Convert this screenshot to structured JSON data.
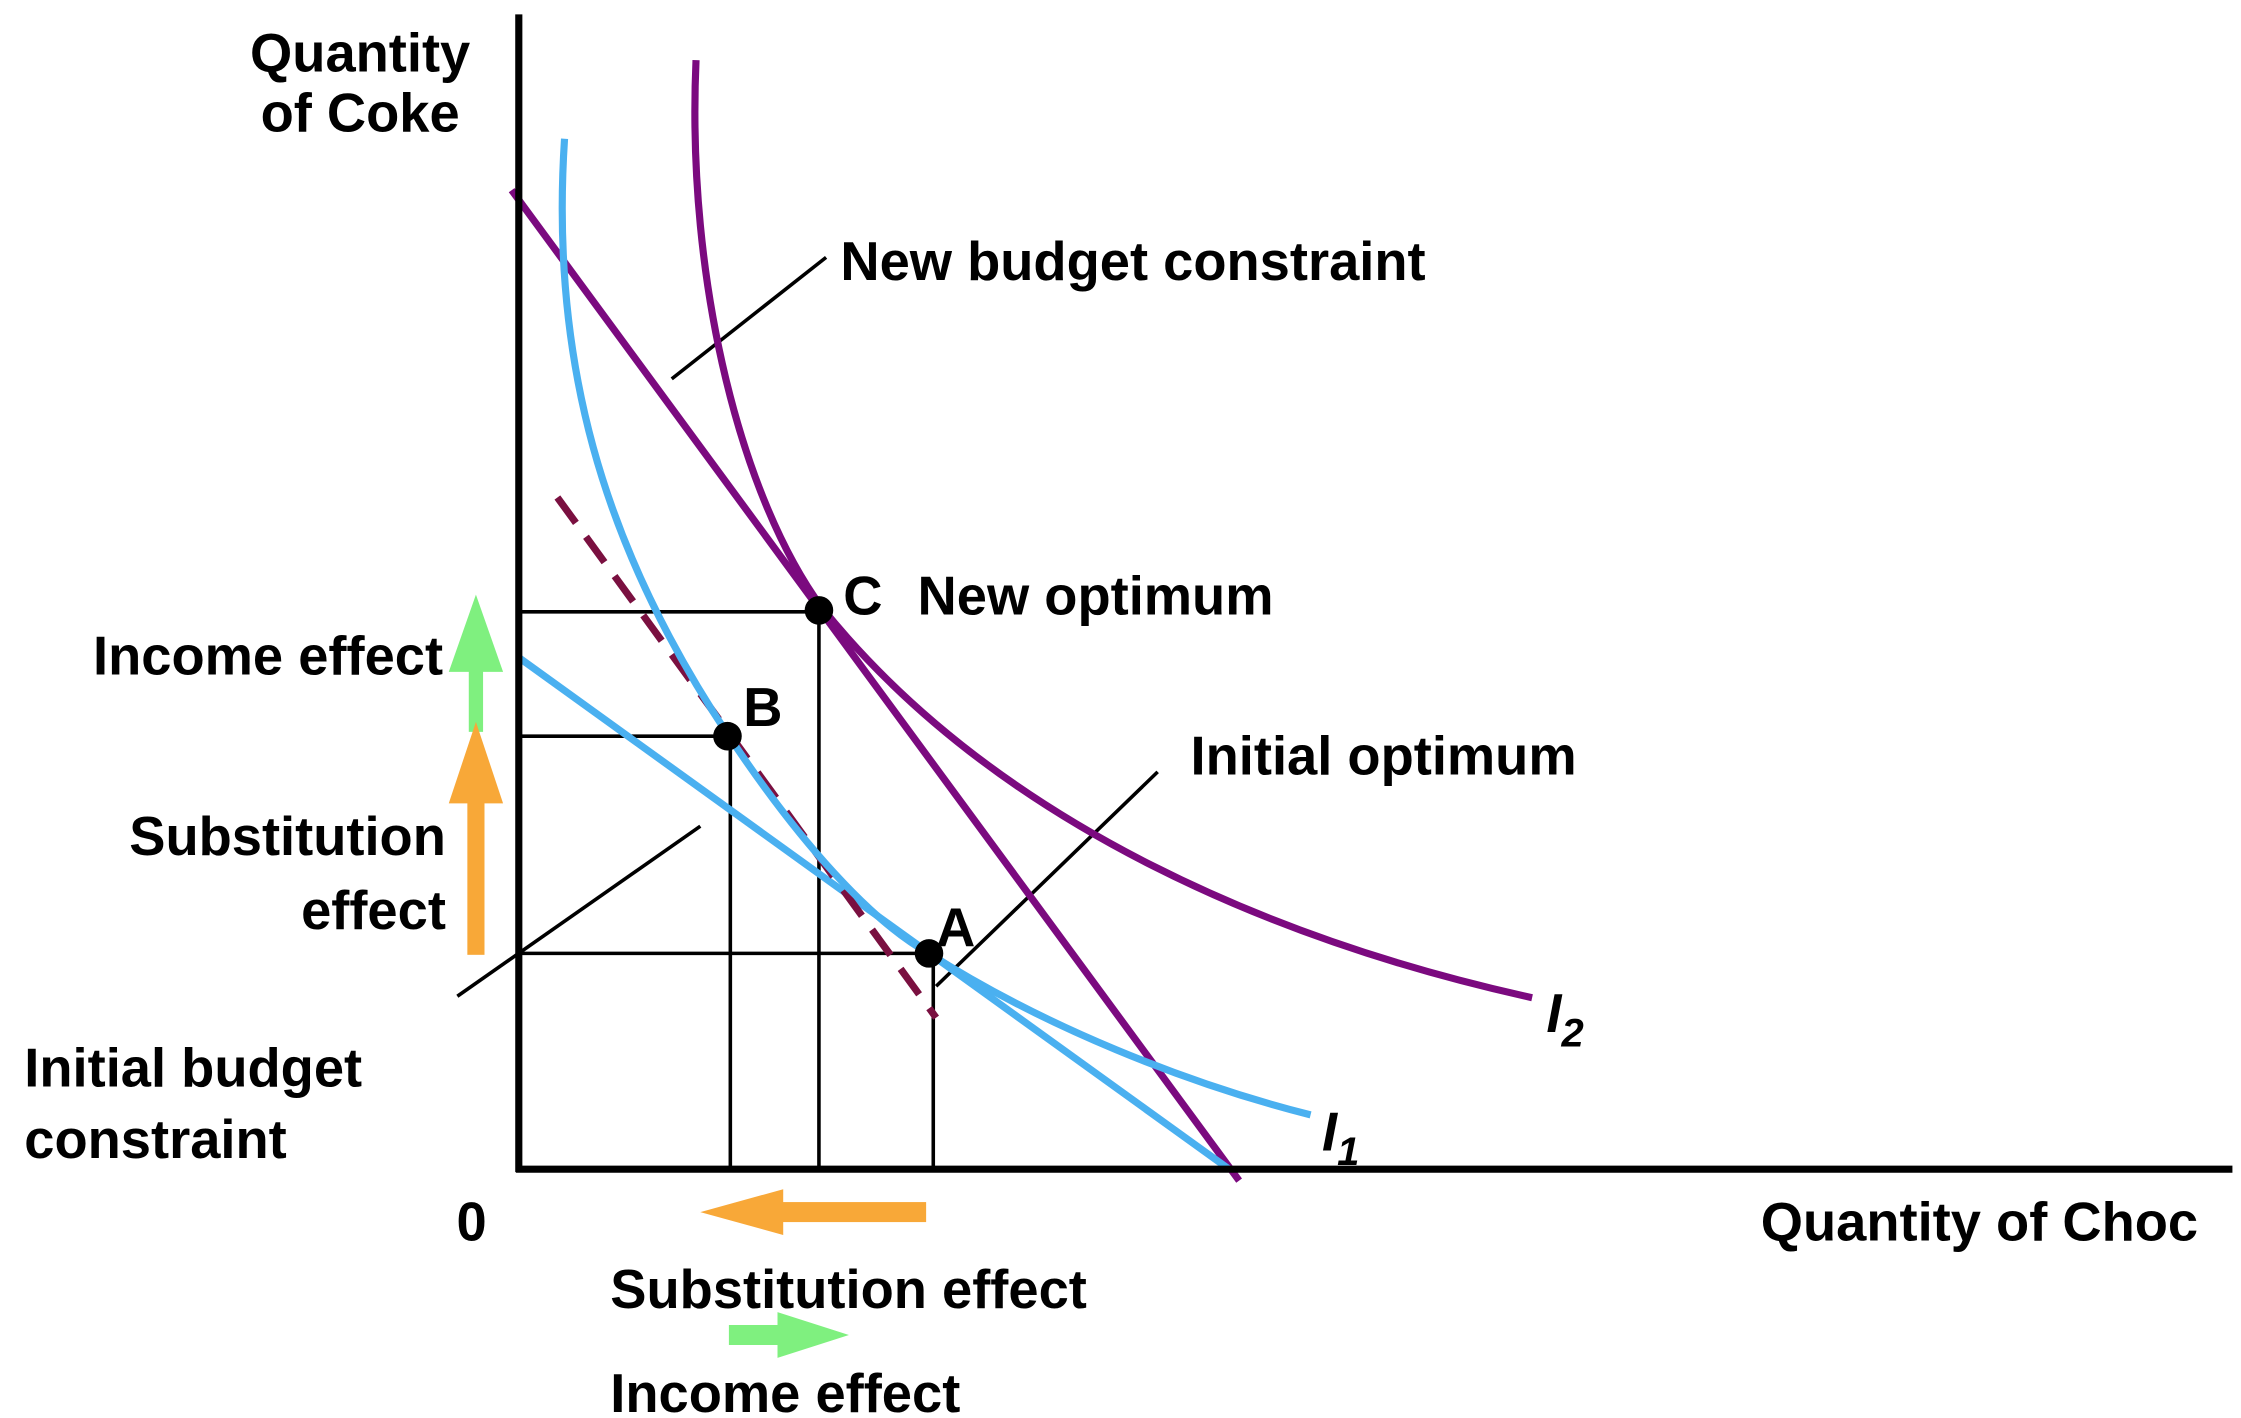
{
  "axes": {
    "y_label": [
      "Quantity",
      "of Coke"
    ],
    "x_label": "Quantity of Choc",
    "origin": "0"
  },
  "curves": [
    {
      "label": "I",
      "subscript": "2"
    },
    {
      "label": "I",
      "subscript": "1"
    }
  ],
  "points": [
    {
      "label": "A"
    },
    {
      "label": "B"
    },
    {
      "label": "C"
    }
  ],
  "annotations": {
    "new_budget": "New budget constraint",
    "new_optimum": "New optimum",
    "initial_optimum": "Initial optimum",
    "initial_budget": [
      "Initial budget",
      "constraint"
    ]
  },
  "effects": {
    "vertical": {
      "income": "Income effect",
      "substitution": [
        "Substitution",
        "effect"
      ]
    },
    "horizontal": {
      "substitution": "Substitution effect",
      "income": "Income effect"
    }
  }
}
